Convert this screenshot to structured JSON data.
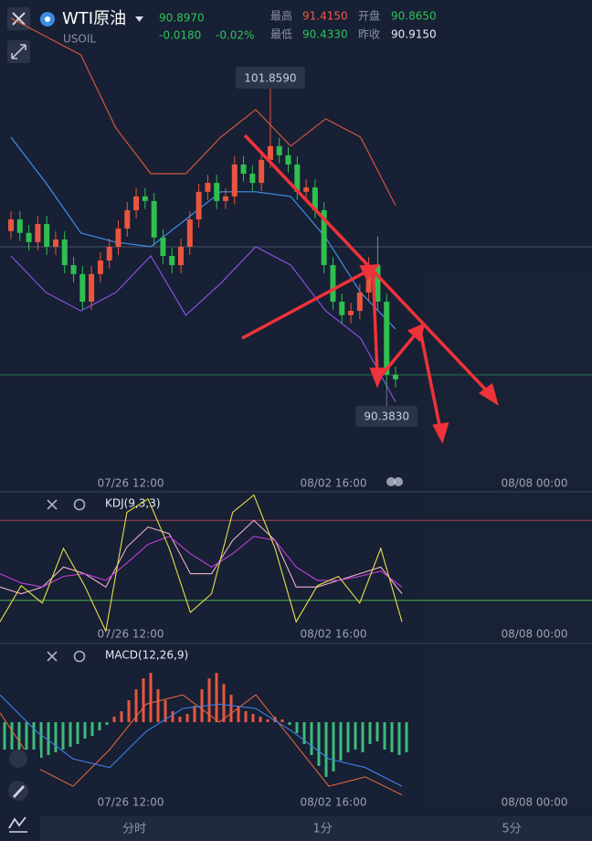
{
  "header": {
    "symbol": "WTI原油",
    "code": "USOIL",
    "price": "90.8970",
    "change": "-0.0180",
    "change_pct": "-0.02%",
    "stats": [
      {
        "label": "最高",
        "value": "91.4150"
      },
      {
        "label": "开盘",
        "value": "90.8650"
      },
      {
        "label": "最低",
        "value": "90.4330"
      },
      {
        "label": "昨收",
        "value": "90.9150"
      }
    ]
  },
  "dates": [
    "07/26 12:00",
    "08/02 16:00",
    "08/08 00:00"
  ],
  "tabs": [
    "分时",
    "1分",
    "5分"
  ],
  "chart_data": [
    {
      "type": "candlestick",
      "ylim": [
        87.17,
        104.74
      ],
      "up_color": "#e9563f",
      "down_color": "#2fbf4f",
      "open": [
        96.2,
        96.63,
        96.13,
        95.79,
        96.46,
        95.62,
        95.89,
        94.94,
        94.61,
        93.59,
        94.61,
        95.11,
        95.62,
        96.29,
        96.97,
        97.48,
        97.31,
        95.96,
        95.28,
        94.94,
        95.62,
        96.63,
        97.65,
        97.98,
        97.31,
        97.48,
        98.66,
        98.32,
        97.98,
        98.83,
        99.34,
        99.0,
        98.66,
        97.65,
        97.81,
        96.97,
        94.94,
        93.59,
        93.09,
        93.25,
        93.93,
        94.94,
        93.59,
        90.89
      ],
      "high": [
        96.93,
        96.93,
        96.43,
        96.76,
        96.76,
        96.19,
        96.19,
        95.24,
        94.91,
        94.91,
        95.41,
        95.92,
        96.59,
        97.27,
        97.78,
        97.78,
        97.61,
        96.26,
        95.58,
        95.92,
        96.93,
        97.95,
        98.28,
        98.28,
        97.78,
        98.96,
        98.96,
        98.62,
        99.13,
        101.859,
        99.64,
        99.3,
        98.96,
        98.11,
        98.11,
        97.27,
        95.24,
        93.89,
        93.55,
        94.23,
        95.24,
        96.0,
        93.89,
        91.19
      ],
      "low": [
        95.9,
        95.83,
        95.49,
        95.49,
        95.32,
        95.32,
        94.64,
        94.31,
        93.29,
        93.29,
        94.31,
        94.81,
        95.32,
        95.99,
        96.67,
        97.01,
        95.66,
        94.98,
        94.64,
        94.64,
        95.32,
        96.33,
        97.35,
        97.01,
        97.01,
        97.18,
        98.02,
        97.68,
        97.68,
        98.53,
        98.7,
        98.36,
        97.35,
        97.35,
        96.67,
        94.64,
        93.29,
        92.79,
        92.79,
        92.95,
        93.63,
        93.29,
        90.383,
        90.42
      ],
      "close": [
        96.63,
        96.13,
        95.79,
        96.46,
        95.62,
        95.89,
        94.94,
        94.61,
        93.59,
        94.61,
        95.11,
        95.62,
        96.29,
        96.97,
        97.48,
        97.31,
        95.96,
        95.28,
        94.94,
        95.62,
        96.63,
        97.65,
        97.98,
        97.31,
        97.48,
        98.66,
        98.32,
        97.98,
        98.83,
        99.34,
        99.0,
        98.66,
        97.65,
        97.81,
        96.97,
        94.94,
        93.59,
        93.09,
        93.25,
        93.93,
        94.94,
        93.59,
        90.89,
        90.72
      ],
      "max_label": {
        "value": 101.859,
        "label": "101.8590"
      },
      "min_label": {
        "value": 90.383,
        "label": "90.3830"
      },
      "lines": [
        {
          "color": "#d2553e",
          "values": [
            104.07,
            103.39,
            102.71,
            100.01,
            98.32,
            98.32,
            99.67,
            100.69,
            99.34,
            100.35,
            99.67,
            97.14
          ]
        },
        {
          "color": "#8a4fe0",
          "values": [
            95.28,
            93.93,
            93.25,
            93.93,
            95.28,
            93.09,
            94.27,
            95.62,
            94.94,
            93.25,
            92.24,
            89.88
          ]
        },
        {
          "color": "#3f8fe8",
          "values": [
            99.67,
            97.98,
            96.13,
            95.79,
            95.62,
            96.63,
            97.65,
            97.65,
            97.48,
            95.96,
            93.93,
            92.58
          ]
        }
      ]
    },
    {
      "type": "line",
      "title": "KDJ(9,3,3)",
      "ylim": [
        0,
        100
      ],
      "ref_levels": [
        80,
        20
      ],
      "ref_colors": [
        "#a14a4a",
        "#4caf50"
      ],
      "series": [
        {
          "color": "#f0b0c8",
          "values": [
            30,
            25,
            30,
            45,
            40,
            30,
            60,
            75,
            70,
            40,
            40,
            65,
            80,
            65,
            30,
            30,
            35,
            40,
            45,
            25
          ]
        },
        {
          "color": "#c23fd8",
          "values": [
            40,
            33,
            30,
            38,
            40,
            35,
            48,
            62,
            68,
            55,
            45,
            55,
            68,
            65,
            45,
            35,
            35,
            38,
            42,
            30
          ]
        },
        {
          "color": "#e8e04a",
          "values": [
            4,
            31,
            18,
            59,
            31,
            -3,
            86,
            96,
            59,
            11,
            25,
            86,
            99,
            59,
            4,
            31,
            38,
            18,
            59,
            4
          ]
        }
      ]
    },
    {
      "type": "macd",
      "title": "MACD(12,26,9)",
      "ylim": [
        -1.67,
        1.42
      ],
      "up_color": "#e9563f",
      "down_color": "#3dbb7a",
      "histogram": [
        -0.6,
        -0.65,
        -0.7,
        -0.7,
        -0.65,
        -0.65,
        -0.6,
        -0.55,
        -0.5,
        -0.45,
        -0.4,
        -0.3,
        -0.25,
        -0.15,
        -0.05,
        0.1,
        0.2,
        0.4,
        0.6,
        0.8,
        0.9,
        0.6,
        0.4,
        0.2,
        0.1,
        0.15,
        0.3,
        0.6,
        0.8,
        0.9,
        0.7,
        0.5,
        0.3,
        0.2,
        0.15,
        0.1,
        0.05,
        0.1,
        0.05,
        -0.05,
        -0.2,
        -0.4,
        -0.6,
        -0.8,
        -1.0,
        -0.9,
        -0.7,
        -0.55,
        -0.5,
        -0.55,
        -0.4,
        -0.35,
        -0.5,
        -0.55,
        -0.6,
        -0.55
      ],
      "series": [
        {
          "color": "#e0653f",
          "values": [
            0.17,
            -0.83,
            -1.17,
            -0.5,
            0.33,
            0.5,
            0,
            0.5,
            -0.33,
            -1.17,
            -1,
            -1.33
          ]
        },
        {
          "color": "#3f7fe8",
          "values": [
            0.5,
            -0.17,
            -0.67,
            -0.83,
            -0.17,
            0.25,
            0.33,
            0.25,
            -0.17,
            -0.67,
            -0.83,
            -1.17
          ]
        }
      ]
    }
  ]
}
